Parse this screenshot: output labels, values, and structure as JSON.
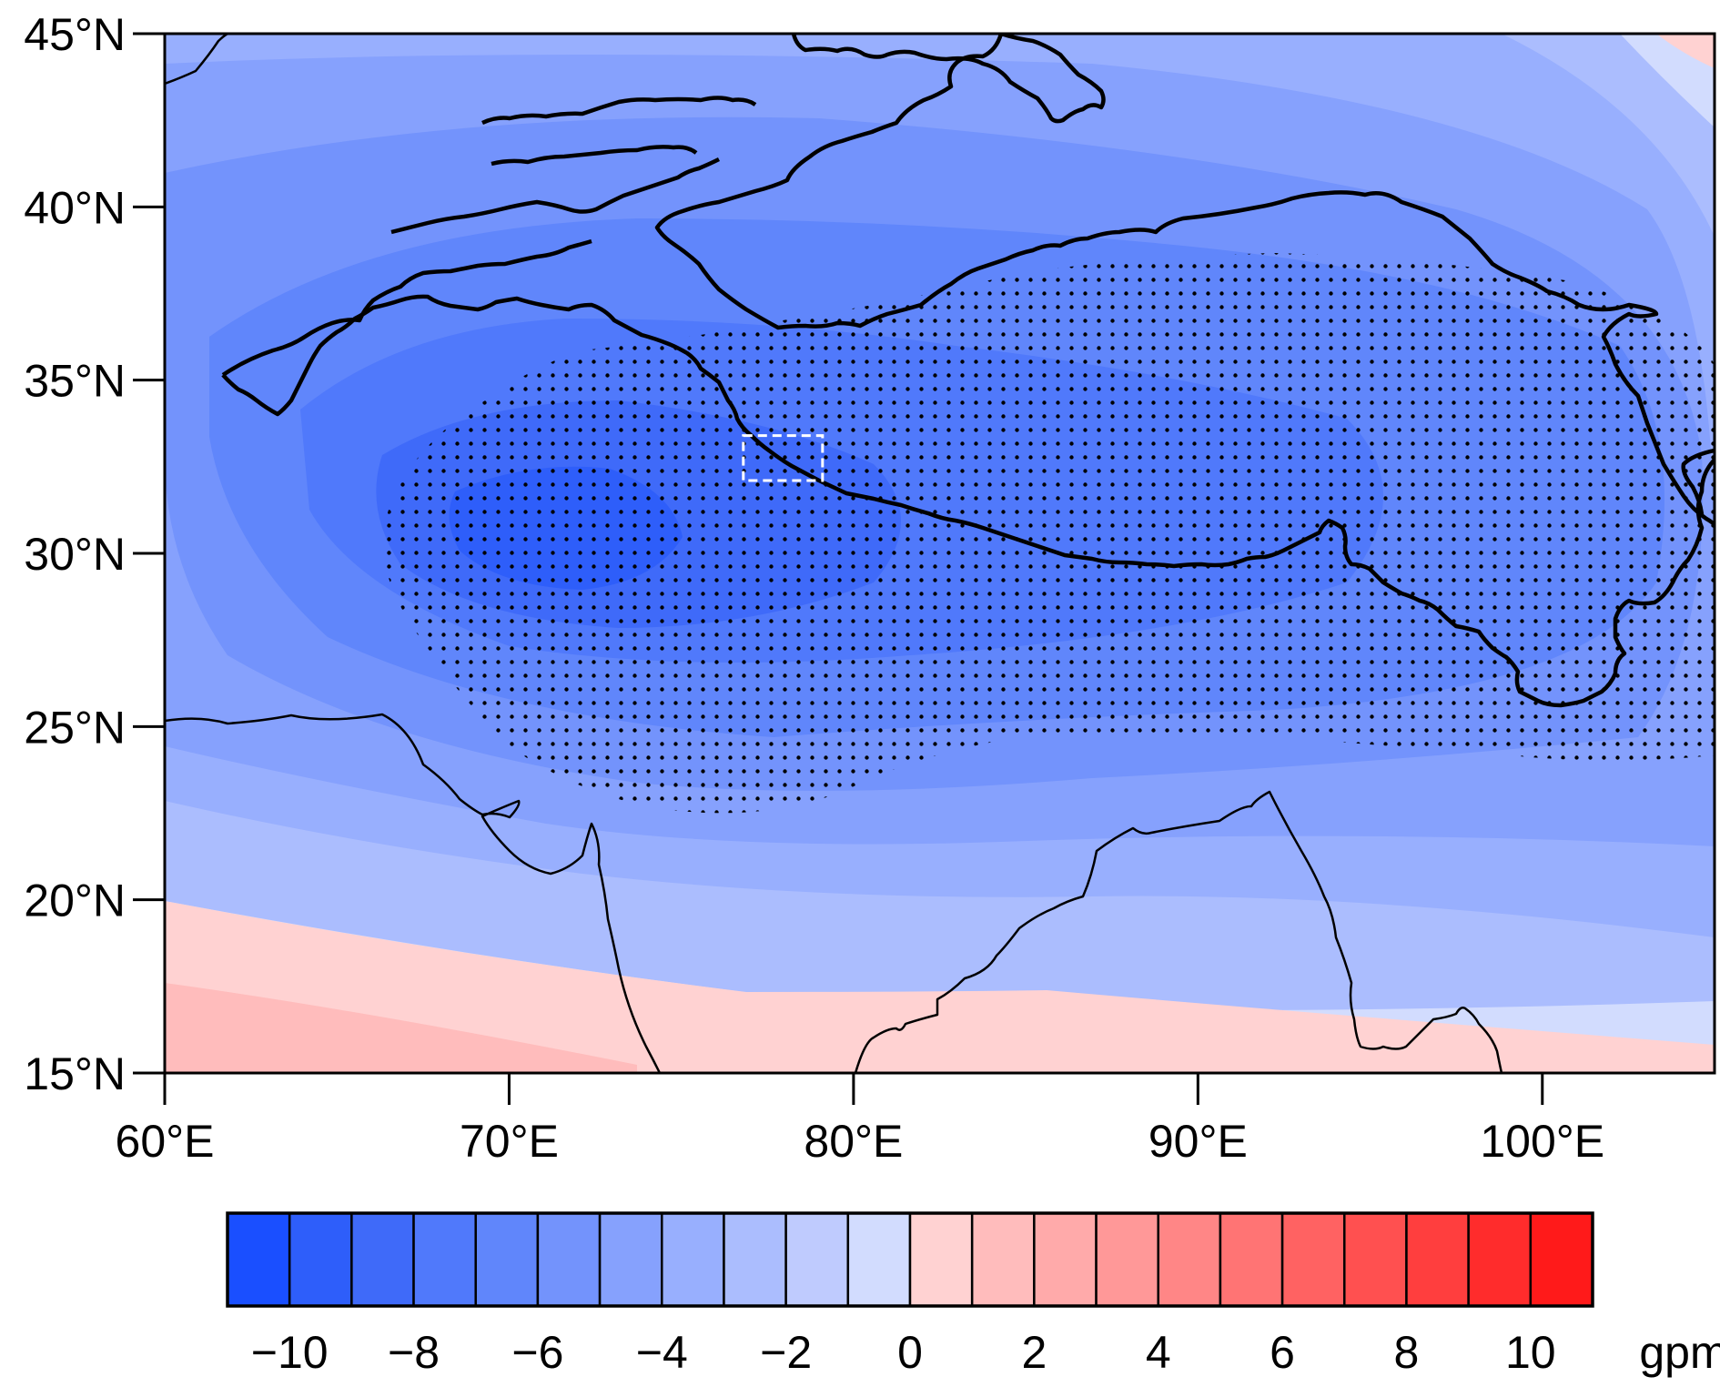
{
  "map": {
    "lon_range": [
      60,
      105
    ],
    "lat_range": [
      15,
      45
    ],
    "lon_ticks": [
      {
        "value": 60,
        "label": "60°E"
      },
      {
        "value": 70,
        "label": "70°E"
      },
      {
        "value": 80,
        "label": "80°E"
      },
      {
        "value": 90,
        "label": "90°E"
      },
      {
        "value": 100,
        "label": "100°E"
      }
    ],
    "lat_ticks": [
      {
        "value": 15,
        "label": "15°N"
      },
      {
        "value": 20,
        "label": "20°N"
      },
      {
        "value": 25,
        "label": "25°N"
      },
      {
        "value": 30,
        "label": "30°N"
      },
      {
        "value": 35,
        "label": "35°N"
      },
      {
        "value": 40,
        "label": "40°N"
      },
      {
        "value": 45,
        "label": "45°N"
      }
    ],
    "field_minimum": {
      "lon": 72.5,
      "lat": 30.5
    },
    "study_box": {
      "lon_min": 76.8,
      "lon_max": 79.1,
      "lat_min": 32.1,
      "lat_max": 33.4
    },
    "stippling": "significant region (dots)",
    "outline": "Tibetan Plateau"
  },
  "colorbar": {
    "unit": "gpm",
    "min": -11,
    "max": 11,
    "step": 1,
    "labels": [
      {
        "value": -10,
        "text": "−10"
      },
      {
        "value": -8,
        "text": "−8"
      },
      {
        "value": -6,
        "text": "−6"
      },
      {
        "value": -4,
        "text": "−4"
      },
      {
        "value": -2,
        "text": "−2"
      },
      {
        "value": 0,
        "text": "0"
      },
      {
        "value": 2,
        "text": "2"
      },
      {
        "value": 4,
        "text": "4"
      },
      {
        "value": 6,
        "text": "6"
      },
      {
        "value": 8,
        "text": "8"
      },
      {
        "value": 10,
        "text": "10"
      }
    ],
    "colors": [
      "#1a4fff",
      "#2e5efa",
      "#3f6af9",
      "#5079fb",
      "#6086fb",
      "#7393fc",
      "#86a1fd",
      "#98affe",
      "#abbdfe",
      "#bfcbfe",
      "#d2dcfe",
      "#ffd2d2",
      "#ffbcbc",
      "#ffaaaa",
      "#ff9898",
      "#ff8686",
      "#ff7474",
      "#ff6262",
      "#ff5050",
      "#ff3e3e",
      "#ff2c2c",
      "#ff1a1a"
    ]
  }
}
